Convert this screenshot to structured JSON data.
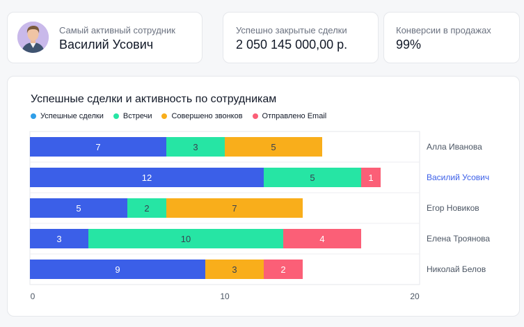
{
  "kpis": {
    "top_employee": {
      "label": "Самый активный сотрудник",
      "value": "Василий Усович",
      "avatar_icon": "person-avatar"
    },
    "closed_deals": {
      "label": "Успешно закрытые сделки",
      "value": "2 050 145 000,00 р."
    },
    "conversion": {
      "label": "Конверсии в продажах",
      "value": "99%"
    }
  },
  "chart_data": {
    "type": "bar",
    "orientation": "horizontal",
    "stacked": true,
    "title": "Успешные сделки и активность по сотрудникам",
    "categories": [
      "Алла Иванова",
      "Василий Усович",
      "Егор Новиков",
      "Елена Троянова",
      "Николай Белов"
    ],
    "highlighted_category": "Василий Усович",
    "series": [
      {
        "name": "Успешные сделки",
        "color": "#2f9ee8",
        "bar_color": "#3b5fe8",
        "values": [
          7,
          12,
          5,
          3,
          9
        ]
      },
      {
        "name": "Встречи",
        "color": "#26e5a4",
        "bar_color": "#26e5a4",
        "values": [
          3,
          5,
          2,
          10,
          0
        ]
      },
      {
        "name": "Совершено звонков",
        "color": "#f9ae1b",
        "bar_color": "#f9ae1b",
        "values": [
          5,
          0,
          7,
          0,
          3
        ]
      },
      {
        "name": "Отправлено Email",
        "color": "#fb5f77",
        "bar_color": "#fb5f77",
        "values": [
          0,
          1,
          0,
          4,
          2
        ]
      }
    ],
    "xlim": [
      0,
      20
    ],
    "xticks": [
      "0",
      "10",
      "20"
    ],
    "grid": true,
    "legend_position": "top-left"
  }
}
